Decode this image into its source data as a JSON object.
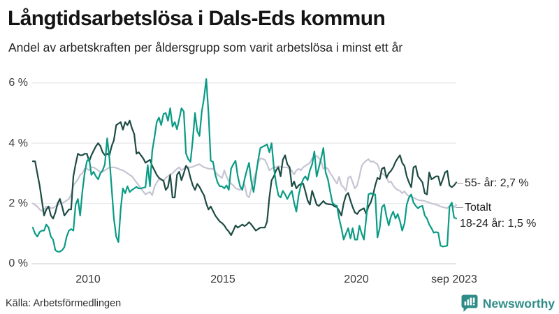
{
  "header": {
    "title": "Långtidsarbetslösa i Dals-Eds kommun",
    "subtitle": "Andel av arbetskraften per åldersgrupp som varit arbetslösa i minst ett år"
  },
  "footer": {
    "source": "Källa: Arbetsförmedlingen",
    "brand": "Newsworthy",
    "brand_color": "#2e8c87"
  },
  "chart_data": {
    "type": "line",
    "x_unit": "month",
    "x_start": "2008-01",
    "x_end": "2023-09",
    "ylim": [
      0,
      6.3
    ],
    "grid": "horizontal",
    "y_ticks": [
      {
        "value": 6,
        "label": "6 %"
      },
      {
        "value": 4,
        "label": "4 %"
      },
      {
        "value": 2,
        "label": "2 %"
      },
      {
        "value": 0,
        "label": "0 %"
      }
    ],
    "x_ticks": [
      {
        "label": "2010"
      },
      {
        "label": "2015"
      },
      {
        "label": "2020"
      },
      {
        "label": "sep 2023"
      }
    ],
    "series": [
      {
        "name": "Totalt",
        "color": "#c7c4d3",
        "values": [
          2.0,
          1.95,
          1.9,
          1.8,
          1.75,
          1.8,
          1.9,
          1.88,
          1.85,
          1.85,
          1.9,
          1.95,
          2.0,
          2.0,
          2.05,
          2.1,
          2.15,
          2.3,
          2.6,
          2.7,
          2.8,
          2.95,
          3.0,
          3.15,
          3.15,
          3.1,
          3.2,
          3.2,
          3.15,
          3.1,
          3.03,
          3.05,
          3.1,
          3.15,
          3.2,
          3.2,
          3.2,
          3.18,
          3.15,
          3.12,
          3.1,
          3.05,
          3.0,
          2.95,
          2.9,
          2.8,
          2.7,
          2.6,
          2.5,
          2.4,
          2.3,
          2.35,
          2.38,
          2.27,
          2.55,
          2.7,
          2.8,
          2.78,
          2.75,
          2.85,
          2.9,
          2.96,
          3.0,
          3.08,
          3.15,
          3.2,
          3.1,
          3.15,
          3.24,
          3.2,
          3.2,
          3.22,
          3.25,
          3.28,
          3.3,
          3.25,
          3.2,
          3.18,
          3.15,
          3.15,
          3.15,
          3.05,
          2.96,
          2.9,
          2.85,
          3.1,
          2.9,
          2.73,
          2.66,
          2.6,
          2.5,
          2.48,
          2.45,
          2.55,
          2.63,
          2.27,
          2.2,
          2.5,
          2.8,
          3.03,
          3.35,
          3.5,
          3.48,
          3.45,
          3.3,
          3.1,
          3.15,
          3.2,
          3.2,
          3.24,
          3.22,
          3.2,
          3.2,
          3.2,
          3.15,
          3.08,
          2.96,
          3.1,
          3.15,
          3.1,
          3.2,
          3.25,
          3.3,
          3.35,
          3.5,
          3.55,
          3.58,
          3.5,
          3.4,
          3.15,
          3.2,
          3.15,
          3.0,
          2.9,
          2.77,
          2.66,
          2.89,
          2.6,
          2.54,
          2.42,
          2.85,
          2.9,
          2.7,
          2.5,
          2.6,
          2.9,
          3.24,
          3.35,
          3.42,
          3.47,
          3.38,
          3.4,
          3.35,
          3.3,
          3.1,
          3.0,
          2.95,
          2.89,
          2.7,
          2.73,
          2.6,
          2.5,
          2.45,
          2.42,
          2.34,
          2.4,
          2.3,
          2.25,
          2.22,
          2.2,
          2.15,
          2.12,
          2.1,
          2.1,
          2.08,
          2.05,
          2.03,
          2.0,
          1.98,
          1.96,
          1.94,
          1.9,
          1.88,
          1.86,
          1.84,
          1.92,
          1.96,
          1.88,
          1.95
        ]
      },
      {
        "name": "55- år",
        "color": "#1d4b43",
        "values": [
          3.4,
          3.4,
          3.0,
          2.6,
          2.1,
          1.6,
          1.8,
          1.9,
          1.6,
          1.5,
          1.7,
          2.0,
          2.15,
          1.9,
          1.6,
          1.7,
          1.8,
          1.8,
          2.9,
          3.3,
          3.65,
          3.6,
          3.6,
          3.65,
          3.65,
          3.4,
          3.6,
          3.75,
          3.9,
          4.0,
          3.9,
          3.7,
          3.6,
          3.65,
          3.6,
          3.9,
          4.1,
          4.6,
          4.65,
          4.7,
          4.45,
          4.7,
          4.6,
          4.75,
          4.5,
          4.3,
          3.65,
          3.7,
          3.6,
          3.5,
          3.35,
          3.4,
          3.45,
          3.25,
          3.1,
          2.95,
          2.85,
          2.8,
          2.75,
          2.45,
          2.55,
          2.95,
          2.2,
          2.2,
          2.95,
          3.05,
          2.77,
          3.0,
          3.25,
          3.15,
          2.85,
          2.6,
          2.45,
          2.65,
          2.55,
          2.4,
          2.27,
          2.0,
          1.8,
          1.9,
          1.75,
          1.6,
          1.5,
          1.4,
          1.35,
          1.27,
          1.15,
          1.07,
          0.95,
          1.1,
          1.27,
          1.2,
          1.25,
          1.3,
          1.25,
          1.3,
          1.38,
          1.3,
          1.2,
          1.1,
          1.15,
          1.2,
          1.2,
          1.2,
          1.4,
          2.2,
          2.77,
          2.9,
          3.1,
          3.2,
          2.9,
          3.45,
          3.6,
          3.3,
          3.2,
          2.57,
          2.73,
          2.5,
          2.6,
          2.65,
          2.66,
          2.4,
          2.1,
          1.96,
          2.42,
          2.2,
          1.96,
          1.92,
          2.0,
          2.08,
          2.0,
          1.98,
          1.97,
          1.96,
          1.9,
          1.88,
          1.75,
          1.6,
          2.0,
          2.27,
          2.35,
          2.1,
          1.88,
          1.7,
          1.65,
          1.76,
          1.8,
          1.84,
          1.65,
          1.9,
          2.03,
          2.27,
          2.6,
          2.85,
          2.8,
          3.15,
          3.2,
          2.85,
          3.0,
          3.08,
          3.2,
          3.38,
          3.5,
          3.6,
          3.35,
          3.24,
          2.9,
          2.7,
          2.54,
          3.2,
          3.24,
          2.9,
          2.8,
          2.7,
          2.34,
          2.3,
          3.03,
          2.8,
          2.85,
          2.9,
          2.9,
          2.6,
          2.8,
          3.03,
          3.08,
          2.6,
          2.54,
          2.6,
          2.7
        ]
      },
      {
        "name": "18-24 år",
        "color": "#0a9b85",
        "values": [
          1.2,
          1.0,
          0.9,
          1.05,
          1.1,
          1.1,
          1.3,
          1.2,
          0.9,
          0.8,
          0.45,
          0.4,
          0.4,
          0.45,
          0.55,
          0.9,
          1.1,
          1.15,
          1.1,
          1.96,
          2.15,
          1.6,
          2.4,
          3.0,
          3.4,
          3.5,
          2.95,
          3.05,
          2.9,
          2.8,
          3.0,
          3.1,
          3.3,
          4.16,
          3.5,
          2.5,
          1.5,
          0.9,
          0.72,
          1.8,
          2.5,
          2.34,
          2.57,
          2.38,
          2.45,
          2.5,
          2.55,
          2.5,
          2.5,
          2.52,
          2.54,
          3.27,
          2.57,
          3.73,
          4.2,
          4.7,
          4.85,
          4.6,
          4.97,
          5.0,
          4.74,
          5.16,
          4.55,
          4.7,
          4.46,
          4.8,
          5.16,
          5.05,
          3.66,
          3.47,
          3.38,
          4.12,
          5.0,
          4.4,
          4.24,
          5.05,
          5.5,
          6.13,
          5.0,
          3.42,
          3.38,
          2.96,
          2.7,
          2.57,
          2.57,
          2.5,
          2.6,
          2.45,
          3.15,
          3.3,
          3.42,
          2.9,
          2.57,
          2.45,
          2.8,
          3.1,
          3.35,
          2.73,
          2.38,
          2.9,
          3.42,
          3.84,
          3.88,
          3.92,
          3.96,
          3.7,
          4.0,
          3.2,
          2.66,
          2.27,
          2.2,
          2.42,
          2.3,
          2.15,
          2.3,
          2.42,
          2.03,
          1.73,
          2.27,
          2.6,
          2.8,
          2.9,
          2.77,
          3.1,
          3.3,
          3.73,
          2.89,
          3.2,
          3.5,
          3.84,
          3.03,
          2.8,
          2.4,
          2.03,
          1.95,
          1.92,
          1.5,
          1.18,
          0.8,
          1.0,
          1.18,
          0.84,
          1.18,
          0.8,
          0.8,
          1.26,
          1.0,
          0.8,
          1.5,
          2.3,
          2.34,
          2.3,
          2.3,
          0.87,
          1.18,
          1.88,
          1.96,
          1.57,
          1.27,
          1.57,
          1.73,
          1.5,
          1.65,
          1.41,
          1.1,
          1.34,
          1.96,
          2.2,
          2.3,
          2.03,
          1.92,
          1.84,
          1.9,
          1.92,
          1.6,
          1.5,
          1.3,
          1.18,
          1.03,
          1.05,
          1.03,
          0.6,
          0.57,
          0.58,
          0.6,
          1.88,
          2.03,
          1.53,
          1.5
        ]
      }
    ],
    "annotations": [
      {
        "text": "55- år: 2,7 %",
        "connector": true
      },
      {
        "text": "Totalt",
        "connector": true
      },
      {
        "text": "18-24 år: 1,5 %",
        "connector": false
      }
    ]
  }
}
